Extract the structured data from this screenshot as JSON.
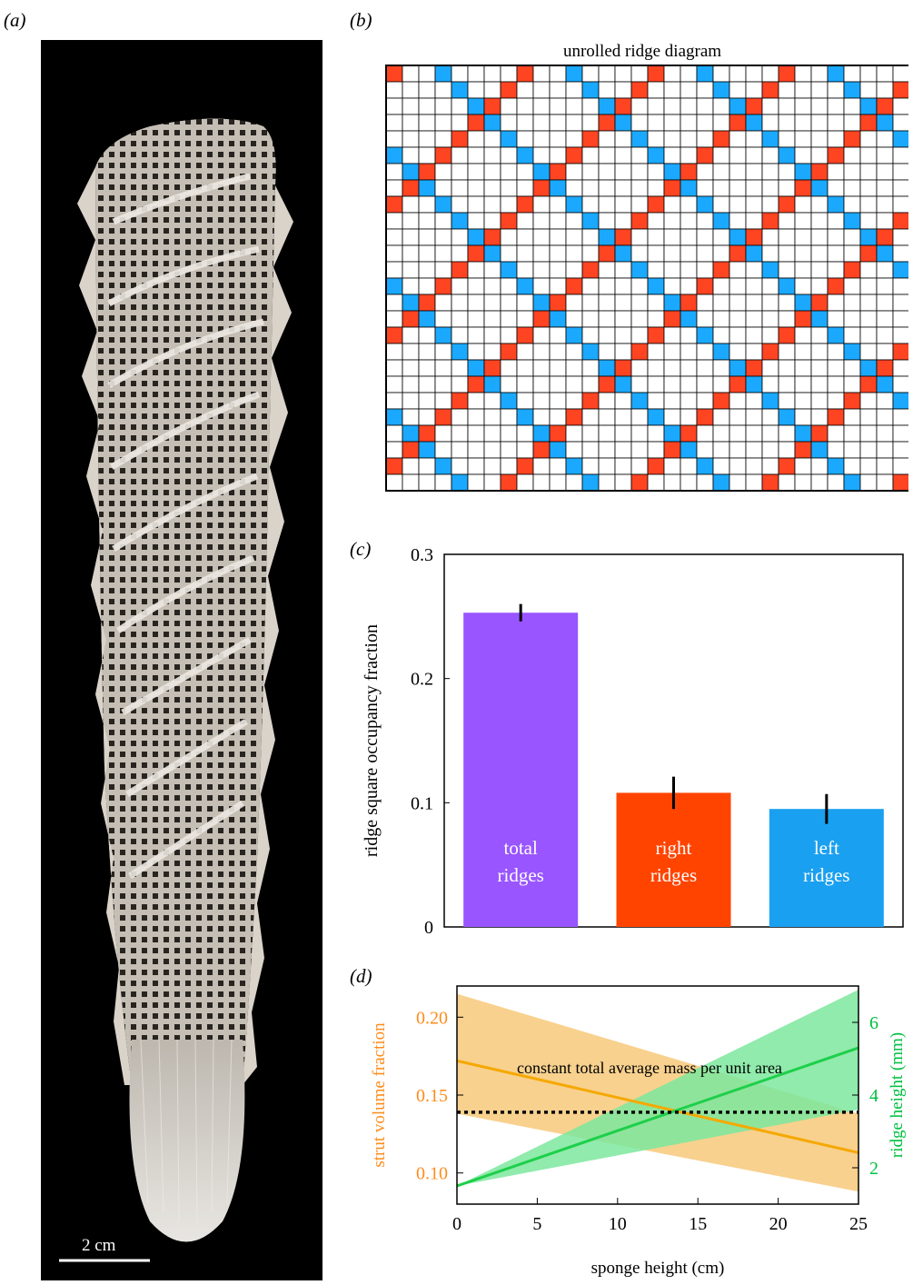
{
  "panel_labels": {
    "a": "(a)",
    "b": "(b)",
    "c": "(c)",
    "d": "(d)"
  },
  "photo": {
    "scale_bar_label": "2 cm"
  },
  "grid": {
    "title": "unrolled ridge diagram",
    "columns": 32,
    "rows": 26,
    "colors": {
      "purple": "#9955ff",
      "blue": "#1aa9ff",
      "red": "#ff4422"
    }
  },
  "chart_data": [
    {
      "type": "bar",
      "ylabel": "ridge square occupancy fraction",
      "ylim": [
        0,
        0.3
      ],
      "yticks": [
        "0",
        "0.1",
        "0.2",
        "0.3"
      ],
      "ytick_values": [
        0,
        0.1,
        0.2,
        0.3
      ],
      "categories": [
        "total ridges",
        "right ridges",
        "left ridges"
      ],
      "bar_text": [
        [
          "total",
          "ridges"
        ],
        [
          "right",
          "ridges"
        ],
        [
          "left",
          "ridges"
        ]
      ],
      "values": [
        0.253,
        0.108,
        0.095
      ],
      "errors": [
        0.007,
        0.013,
        0.012
      ],
      "colors": [
        "#9955ff",
        "#ff4400",
        "#1aa0f0"
      ]
    },
    {
      "type": "line",
      "xlabel": "sponge height (cm)",
      "xlim": [
        0,
        25
      ],
      "xticks": [
        "0",
        "5",
        "10",
        "15",
        "20",
        "25"
      ],
      "xtick_values": [
        0,
        5,
        10,
        15,
        20,
        25
      ],
      "left_axis": {
        "label": "strut volume fraction",
        "ylim": [
          0.08,
          0.22
        ],
        "ticks": [
          "0.10",
          "0.15",
          "0.20"
        ],
        "tick_values": [
          0.1,
          0.15,
          0.2
        ],
        "color": "#ff8c1a"
      },
      "right_axis": {
        "label": "ridge height (mm)",
        "ylim": [
          1.0,
          7.0
        ],
        "ticks": [
          "2",
          "4",
          "6"
        ],
        "tick_values": [
          2,
          4,
          6
        ],
        "color": "#00c040"
      },
      "series": [
        {
          "axis": "left",
          "color": "#f5a800",
          "band_color": "#f7c97a",
          "x": [
            0,
            25
          ],
          "y": [
            0.172,
            0.113
          ],
          "band_low": [
            0.138,
            0.088
          ],
          "band_high": [
            0.215,
            0.138
          ]
        },
        {
          "axis": "right",
          "color": "#1ecf4a",
          "band_color": "#7de89d",
          "x": [
            0,
            25
          ],
          "y": [
            1.5,
            5.3
          ],
          "band_low": [
            1.5,
            3.6
          ],
          "band_high": [
            1.5,
            6.9
          ]
        }
      ],
      "reference_line": {
        "label": "constant total average mass per unit area",
        "y": 0.139,
        "axis": "left"
      }
    }
  ]
}
